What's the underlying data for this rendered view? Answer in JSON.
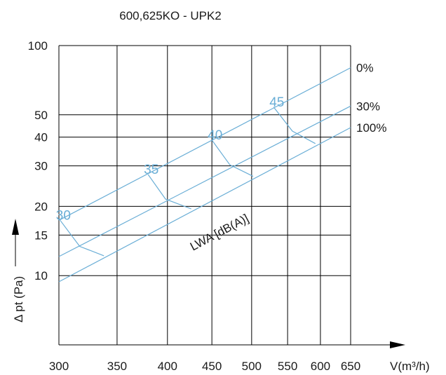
{
  "chart_data": {
    "type": "line",
    "title": "600,625KO - UPK2",
    "xlabel": "V(m³/h)",
    "ylabel": "Δ pt (Pa)",
    "x_scale": "log",
    "y_scale": "log",
    "xlim": [
      300,
      650
    ],
    "ylim": [
      5,
      100
    ],
    "grid": true,
    "x_ticks": [
      300,
      350,
      400,
      450,
      500,
      550,
      600,
      650
    ],
    "x_tick_labels": [
      "300",
      "350",
      "400",
      "450",
      "500",
      "550",
      "600",
      "650"
    ],
    "y_ticks": [
      10,
      15,
      20,
      30,
      40,
      50,
      100
    ],
    "y_tick_labels": [
      "10",
      "15",
      "20",
      "30",
      "40",
      "50",
      "100"
    ],
    "series": [
      {
        "name": "0%",
        "x": [
          300,
          650
        ],
        "y": [
          17.4,
          80.1
        ]
      },
      {
        "name": "30%",
        "x": [
          300,
          650
        ],
        "y": [
          12.1,
          54.6
        ]
      },
      {
        "name": "100%",
        "x": [
          300,
          650
        ],
        "y": [
          9.4,
          44.0
        ]
      }
    ],
    "lwa_label": "LWA [dB(A)]",
    "lwa_curves": [
      {
        "label": "30",
        "x": [
          301,
          317,
          338
        ],
        "y": [
          17.4,
          13.4,
          12.2
        ]
      },
      {
        "label": "35",
        "x": [
          380,
          398,
          426
        ],
        "y": [
          27.5,
          21.5,
          19.5
        ]
      },
      {
        "label": "40",
        "x": [
          450,
          472,
          502
        ],
        "y": [
          38.8,
          30.3,
          27.0
        ]
      },
      {
        "label": "45",
        "x": [
          530,
          557,
          592
        ],
        "y": [
          54.0,
          42.5,
          37.5
        ]
      }
    ],
    "colors": {
      "grid": "#000000",
      "curve": "#6aaed6",
      "text": "#1a1a1a",
      "label": "#6aaed6"
    }
  }
}
